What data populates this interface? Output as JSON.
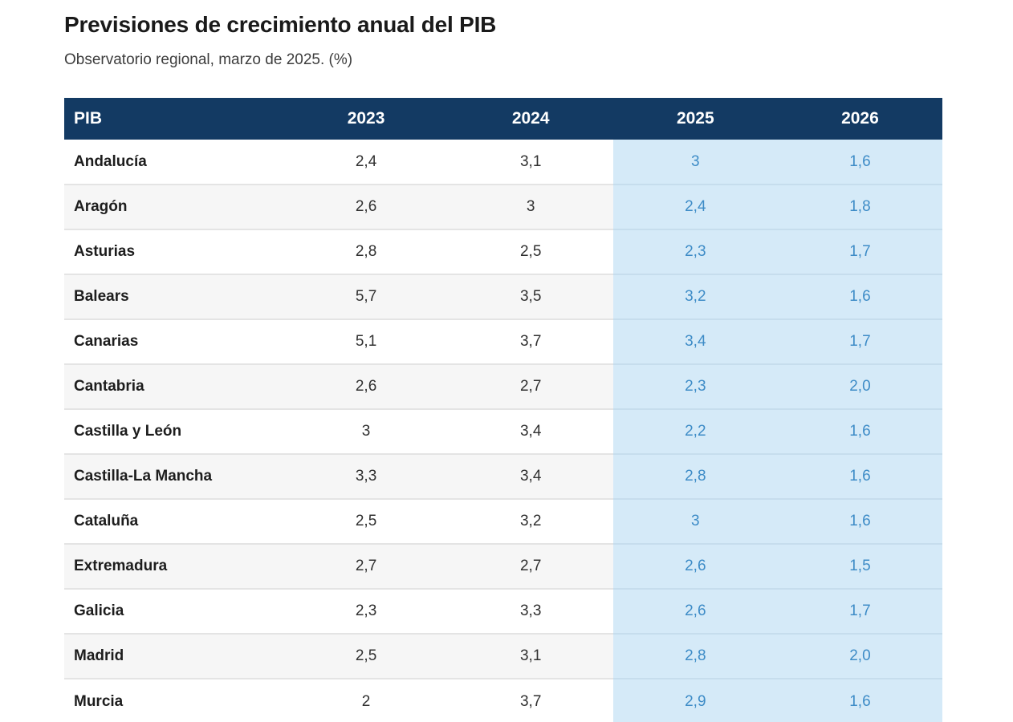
{
  "page": {
    "title": "Previsiones de crecimiento anual del PIB",
    "subtitle": "Observatorio regional, marzo de 2025. (%)"
  },
  "table": {
    "columns": [
      "PIB",
      "2023",
      "2024",
      "2025",
      "2026"
    ],
    "highlighted_columns": [
      "2025",
      "2026"
    ],
    "rows": [
      {
        "region": "Andalucía",
        "v2023": "2,4",
        "v2024": "3,1",
        "v2025": "3",
        "v2026": "1,6"
      },
      {
        "region": "Aragón",
        "v2023": "2,6",
        "v2024": "3",
        "v2025": "2,4",
        "v2026": "1,8"
      },
      {
        "region": "Asturias",
        "v2023": "2,8",
        "v2024": "2,5",
        "v2025": "2,3",
        "v2026": "1,7"
      },
      {
        "region": "Balears",
        "v2023": "5,7",
        "v2024": "3,5",
        "v2025": "3,2",
        "v2026": "1,6"
      },
      {
        "region": "Canarias",
        "v2023": "5,1",
        "v2024": "3,7",
        "v2025": "3,4",
        "v2026": "1,7"
      },
      {
        "region": "Cantabria",
        "v2023": "2,6",
        "v2024": "2,7",
        "v2025": "2,3",
        "v2026": "2,0"
      },
      {
        "region": "Castilla y León",
        "v2023": "3",
        "v2024": "3,4",
        "v2025": "2,2",
        "v2026": "1,6"
      },
      {
        "region": "Castilla-La Mancha",
        "v2023": "3,3",
        "v2024": "3,4",
        "v2025": "2,8",
        "v2026": "1,6"
      },
      {
        "region": "Cataluña",
        "v2023": "2,5",
        "v2024": "3,2",
        "v2025": "3",
        "v2026": "1,6"
      },
      {
        "region": "Extremadura",
        "v2023": "2,7",
        "v2024": "2,7",
        "v2025": "2,6",
        "v2026": "1,5"
      },
      {
        "region": "Galicia",
        "v2023": "2,3",
        "v2024": "3,3",
        "v2025": "2,6",
        "v2026": "1,7"
      },
      {
        "region": "Madrid",
        "v2023": "2,5",
        "v2024": "3,1",
        "v2025": "2,8",
        "v2026": "2,0"
      },
      {
        "region": "Murcia",
        "v2023": "2",
        "v2024": "3,7",
        "v2025": "2,9",
        "v2026": "1,6"
      }
    ]
  },
  "colors": {
    "header_bg": "#133a63",
    "header_text": "#ffffff",
    "highlight_bg": "#d5eaf8",
    "highlight_text": "#3e8cc7",
    "row_alt_bg": "#f6f6f6",
    "row_border": "#e4e4e4",
    "region_text": "#1d1d1d",
    "value_text": "#303030"
  },
  "chart_data": {
    "type": "table",
    "title": "Previsiones de crecimiento anual del PIB",
    "subtitle": "Observatorio regional, marzo de 2025. (%)",
    "unit": "%",
    "columns": [
      "PIB",
      "2023",
      "2024",
      "2025",
      "2026"
    ],
    "highlighted_columns": [
      "2025",
      "2026"
    ],
    "rows": [
      [
        "Andalucía",
        2.4,
        3.1,
        3.0,
        1.6
      ],
      [
        "Aragón",
        2.6,
        3.0,
        2.4,
        1.8
      ],
      [
        "Asturias",
        2.8,
        2.5,
        2.3,
        1.7
      ],
      [
        "Balears",
        5.7,
        3.5,
        3.2,
        1.6
      ],
      [
        "Canarias",
        5.1,
        3.7,
        3.4,
        1.7
      ],
      [
        "Cantabria",
        2.6,
        2.7,
        2.3,
        2.0
      ],
      [
        "Castilla y León",
        3.0,
        3.4,
        2.2,
        1.6
      ],
      [
        "Castilla-La Mancha",
        3.3,
        3.4,
        2.8,
        1.6
      ],
      [
        "Cataluña",
        2.5,
        3.2,
        3.0,
        1.6
      ],
      [
        "Extremadura",
        2.7,
        2.7,
        2.6,
        1.5
      ],
      [
        "Galicia",
        2.3,
        3.3,
        2.6,
        1.7
      ],
      [
        "Madrid",
        2.5,
        3.1,
        2.8,
        2.0
      ],
      [
        "Murcia",
        2.0,
        3.7,
        2.9,
        1.6
      ]
    ]
  }
}
